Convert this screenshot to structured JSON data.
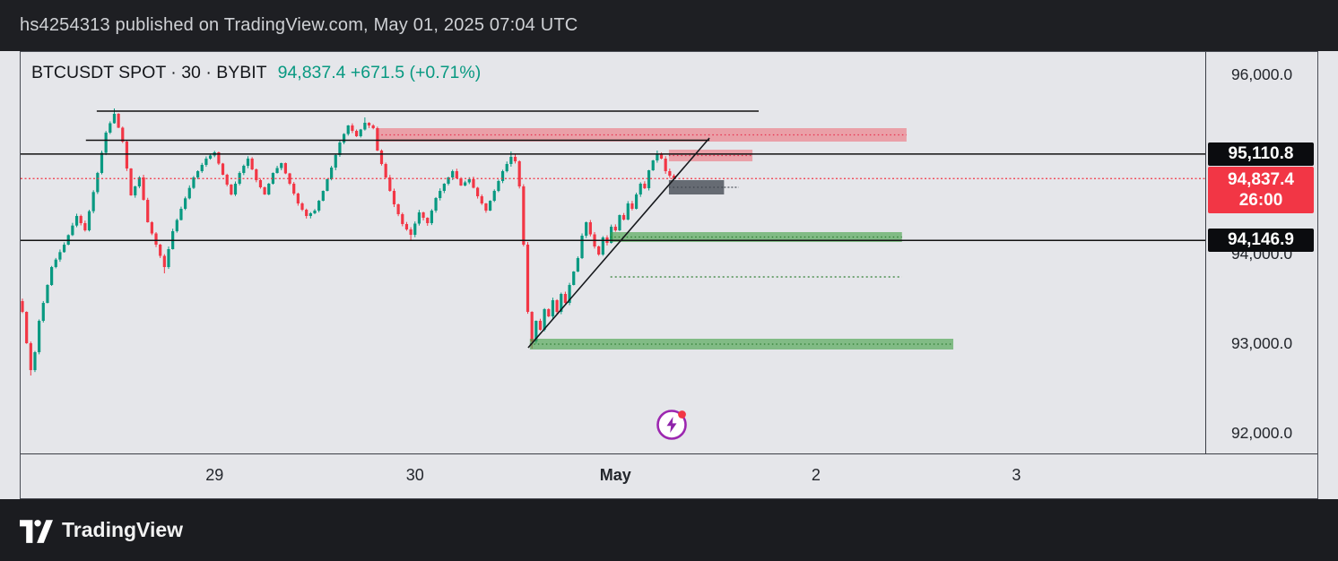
{
  "header_bar": {
    "text": "hs4254313 published on TradingView.com, May 01, 2025 07:04 UTC"
  },
  "footer_bar": {
    "brand": "TradingView"
  },
  "symbol_header": {
    "title": "BTCUSDT SPOT · 30 · BYBIT",
    "price_text": "94,837.4 +671.5 (+0.71%)"
  },
  "colors": {
    "up": "#089981",
    "down": "#f23645",
    "accent_red": "#f23645",
    "chart_bg": "#e5e6ea",
    "bar_bg": "#1e1f23",
    "label_dark_bg": "#0b0c0f"
  },
  "chart_data": {
    "type": "candlestick",
    "symbol": "BTCUSDT",
    "market": "SPOT",
    "interval": "30",
    "exchange": "BYBIT",
    "last_price": 94837.4,
    "change": 671.5,
    "change_pct": "+0.71%",
    "countdown": "26:00",
    "y_axis": {
      "range_top": 96250,
      "range_bottom": 91770,
      "labels": [
        {
          "text": "96,000.0",
          "price": 96000,
          "style": "plain"
        },
        {
          "text": "94,000.0",
          "price": 94000,
          "style": "plain"
        },
        {
          "text": "93,000.0",
          "price": 93000,
          "style": "plain"
        },
        {
          "text": "92,000.0",
          "price": 92000,
          "style": "plain"
        },
        {
          "text": "95,110.8",
          "price": 95110.8,
          "style": "dark-pill"
        },
        {
          "text": "94,146.9",
          "price": 94146.9,
          "style": "dark-pill"
        },
        {
          "text": "94,837.4",
          "sub": "26:00",
          "price": 94837.4,
          "style": "red-pill"
        }
      ]
    },
    "x_axis": {
      "labels": [
        {
          "text": "29",
          "index": 46
        },
        {
          "text": "30",
          "index": 94
        },
        {
          "text": "May",
          "index": 142,
          "bold": true
        },
        {
          "text": "2",
          "index": 190
        },
        {
          "text": "3",
          "index": 238
        }
      ]
    },
    "levels": [
      {
        "name": "resistance-line-top",
        "price": 95590,
        "from_index": 17.8,
        "to_index": 176.3,
        "color": "#111111",
        "style": "solid",
        "width": 1.5
      },
      {
        "name": "resistance-line-apex",
        "price": 95265,
        "from_index": 15.2,
        "to_index": 164.5,
        "color": "#111111",
        "style": "solid",
        "width": 1.5
      },
      {
        "name": "level-line-95110",
        "price": 95110.8,
        "color": "#111111",
        "style": "solid",
        "width": 1.5
      },
      {
        "name": "level-line-94146",
        "price": 94146.9,
        "color": "#111111",
        "style": "solid",
        "width": 1.5
      },
      {
        "name": "last-price-line",
        "price": 94837.4,
        "color": "#f23645",
        "style": "dotted",
        "width": 1.3
      }
    ],
    "zones": [
      {
        "name": "supply-zone-upper",
        "price_top": 95400,
        "price_bottom": 95250,
        "from_index": 85,
        "to_index": 211.7,
        "fill": "rgba(242,54,69,0.40)",
        "line_color": "#e8314f"
      },
      {
        "name": "supply-zone-lower",
        "price_top": 95160,
        "price_bottom": 95030,
        "from_index": 154.8,
        "to_index": 174.8,
        "fill": "rgba(242,54,69,0.40)",
        "line_color": "#e8314f"
      },
      {
        "name": "neutral-gray-zone",
        "price_top": 94820,
        "price_bottom": 94660,
        "from_index": 154.8,
        "to_index": 168,
        "tail_to_index": 171.5,
        "fill": "rgba(84,90,98,0.88)",
        "line_color": "#3e444c"
      },
      {
        "name": "demand-zone-upper",
        "price_top": 94240,
        "price_bottom": 94130,
        "from_index": 140.8,
        "to_index": 210.6,
        "fill": "rgba(67,160,71,0.62)",
        "line_color": "#2e7d32"
      },
      {
        "name": "demand-level-line",
        "type": "dotted-line",
        "price": 93740,
        "from_index": 140.8,
        "to_index": 210.6,
        "color": "#4c8f50"
      },
      {
        "name": "demand-zone-lower",
        "price_top": 93050,
        "price_bottom": 92930,
        "from_index": 121.5,
        "to_index": 222.9,
        "fill": "rgba(67,160,71,0.62)",
        "line_color": "#2e7d32"
      }
    ],
    "trendline": {
      "color": "#16181c",
      "from": {
        "index": 121.1,
        "price": 92950
      },
      "to": {
        "index": 164.5,
        "price": 95290
      }
    },
    "candles": {
      "interval_minutes": 30,
      "count": 157,
      "up_color": "#089981",
      "down_color": "#f23645",
      "anchors": [
        [
          0,
          93350
        ],
        [
          1,
          93000
        ],
        [
          2,
          92700
        ],
        [
          3,
          92900
        ],
        [
          4,
          93250
        ],
        [
          7,
          93850
        ],
        [
          10,
          94100
        ],
        [
          13,
          94420
        ],
        [
          15,
          94260
        ],
        [
          18,
          94900
        ],
        [
          20,
          95350
        ],
        [
          22,
          95560
        ],
        [
          24,
          95250
        ],
        [
          26,
          94650
        ],
        [
          28,
          94850
        ],
        [
          30,
          94350
        ],
        [
          32,
          94100
        ],
        [
          34,
          93850
        ],
        [
          36,
          94250
        ],
        [
          38,
          94500
        ],
        [
          41,
          94850
        ],
        [
          44,
          95060
        ],
        [
          46,
          95130
        ],
        [
          48,
          94880
        ],
        [
          50,
          94660
        ],
        [
          52,
          94900
        ],
        [
          54,
          95060
        ],
        [
          56,
          94820
        ],
        [
          58,
          94660
        ],
        [
          60,
          94900
        ],
        [
          62,
          95010
        ],
        [
          64,
          94780
        ],
        [
          66,
          94560
        ],
        [
          68,
          94420
        ],
        [
          70,
          94480
        ],
        [
          72,
          94700
        ],
        [
          74,
          94960
        ],
        [
          76,
          95240
        ],
        [
          78,
          95430
        ],
        [
          80,
          95310
        ],
        [
          82,
          95460
        ],
        [
          84,
          95400
        ],
        [
          85,
          95150
        ],
        [
          87,
          94850
        ],
        [
          89,
          94550
        ],
        [
          91,
          94330
        ],
        [
          93,
          94210
        ],
        [
          95,
          94460
        ],
        [
          97,
          94340
        ],
        [
          99,
          94620
        ],
        [
          101,
          94780
        ],
        [
          103,
          94920
        ],
        [
          105,
          94760
        ],
        [
          107,
          94830
        ],
        [
          109,
          94640
        ],
        [
          111,
          94480
        ],
        [
          113,
          94700
        ],
        [
          115,
          94920
        ],
        [
          117,
          95080
        ],
        [
          118,
          95030
        ],
        [
          119,
          94750
        ],
        [
          120,
          94100
        ],
        [
          121,
          93350
        ],
        [
          122,
          93020
        ],
        [
          123,
          93250
        ],
        [
          124,
          93150
        ],
        [
          125,
          93380
        ],
        [
          126,
          93300
        ],
        [
          127,
          93480
        ],
        [
          128,
          93350
        ],
        [
          129,
          93550
        ],
        [
          130,
          93450
        ],
        [
          131,
          93650
        ],
        [
          133,
          93950
        ],
        [
          134,
          94200
        ],
        [
          135,
          94350
        ],
        [
          137,
          94080
        ],
        [
          138,
          93990
        ],
        [
          139,
          94180
        ],
        [
          140,
          94120
        ],
        [
          141,
          94300
        ],
        [
          142,
          94260
        ],
        [
          143,
          94430
        ],
        [
          144,
          94380
        ],
        [
          145,
          94560
        ],
        [
          146,
          94500
        ],
        [
          147,
          94660
        ],
        [
          148,
          94780
        ],
        [
          149,
          94730
        ],
        [
          150,
          94930
        ],
        [
          151,
          95040
        ],
        [
          152,
          95110
        ],
        [
          153,
          95060
        ],
        [
          154,
          94920
        ],
        [
          155,
          94870
        ],
        [
          156,
          94837.4
        ]
      ],
      "wick_overrides": {
        "2": {
          "low": 92640
        },
        "22": {
          "high": 95620
        },
        "34": {
          "low": 93780
        },
        "82": {
          "high": 95520
        },
        "93": {
          "low": 94150
        },
        "117": {
          "high": 95140
        },
        "122": {
          "low": 92940
        },
        "152": {
          "high": 95150
        }
      }
    }
  }
}
